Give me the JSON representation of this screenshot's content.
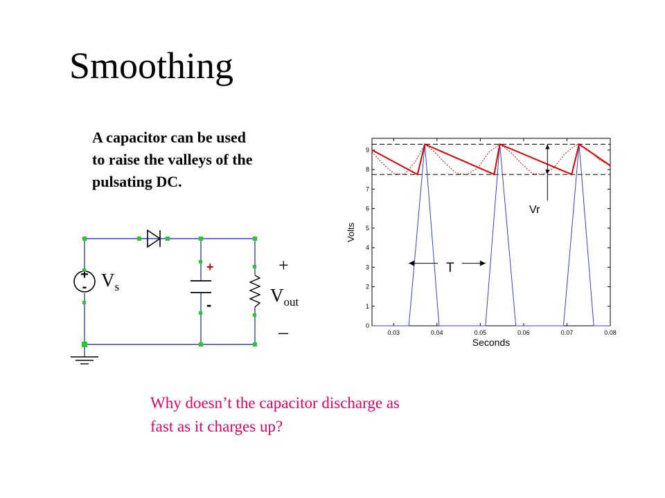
{
  "title": "Smoothing",
  "description_lines": [
    "A capacitor can be used",
    "to raise the valleys of the",
    "pulsating DC."
  ],
  "question_lines": [
    "Why doesn’t the capacitor discharge as",
    "fast as it charges up?"
  ],
  "circuit": {
    "source_label_main": "V",
    "source_label_sub": "s",
    "output_label_main": "V",
    "output_label_sub": "out",
    "plus_sign": "+",
    "minus_sign": "–",
    "cap_plus": "+",
    "cap_minus": "-",
    "source_plus": "+",
    "source_minus": "-"
  },
  "colors": {
    "question_text": "#e0006a",
    "wire": "#3344bb",
    "node": "#22cc22",
    "capacitor_plus": "#dd0000",
    "rectified_wave": "#3344bb",
    "smoothed_wave": "#dd0000"
  },
  "chart_data": {
    "type": "line",
    "xlabel": "Seconds",
    "ylabel": "Volts",
    "xlim": [
      0.025,
      0.08
    ],
    "ylim": [
      0,
      9.6
    ],
    "xticks": [
      "0.03",
      "0.04",
      "0.05",
      "0.06",
      "0.07",
      "0.08"
    ],
    "yticks": [
      "0",
      "1",
      "2",
      "3",
      "4",
      "5",
      "6",
      "7",
      "8",
      "9"
    ],
    "annotations": {
      "ripple": "Vr",
      "period": "T"
    },
    "reference_lines": {
      "v_max": 9.3,
      "v_min": 7.75
    },
    "period_marker": {
      "x_start": 0.0335,
      "x_end": 0.0512,
      "y": 3.2
    },
    "ripple_marker": {
      "x": 0.0655
    },
    "series": [
      {
        "style": "solid",
        "x": [
          0.025,
          0.0335,
          0.0372,
          0.0405,
          0.0512,
          0.0545,
          0.0582,
          0.0692,
          0.0728,
          0.0762,
          0.08
        ],
        "y": [
          0,
          0,
          9.3,
          0,
          0,
          9.3,
          0,
          0,
          9.3,
          0,
          0
        ]
      },
      {
        "style": "solid",
        "x": [
          0.025,
          0.0355,
          0.0372,
          0.0532,
          0.0545,
          0.0711,
          0.0728,
          0.08
        ],
        "y": [
          9.0,
          7.75,
          9.3,
          7.75,
          9.3,
          7.75,
          9.3,
          8.2
        ]
      },
      {
        "style": "dotted",
        "x": [
          0.025,
          0.0275,
          0.03,
          0.0325,
          0.035,
          0.0372,
          0.0395,
          0.042,
          0.0445,
          0.047,
          0.0495,
          0.052,
          0.0545,
          0.057,
          0.0595,
          0.062,
          0.0645,
          0.067,
          0.0695,
          0.072,
          0.0728,
          0.075,
          0.0775,
          0.08
        ],
        "y": [
          8.9,
          8.3,
          7.8,
          7.75,
          8.4,
          9.3,
          8.9,
          8.3,
          7.8,
          7.75,
          8.1,
          8.9,
          9.3,
          8.9,
          8.3,
          7.8,
          7.75,
          8.1,
          8.8,
          9.25,
          9.3,
          9.0,
          8.5,
          8.2
        ]
      }
    ]
  }
}
